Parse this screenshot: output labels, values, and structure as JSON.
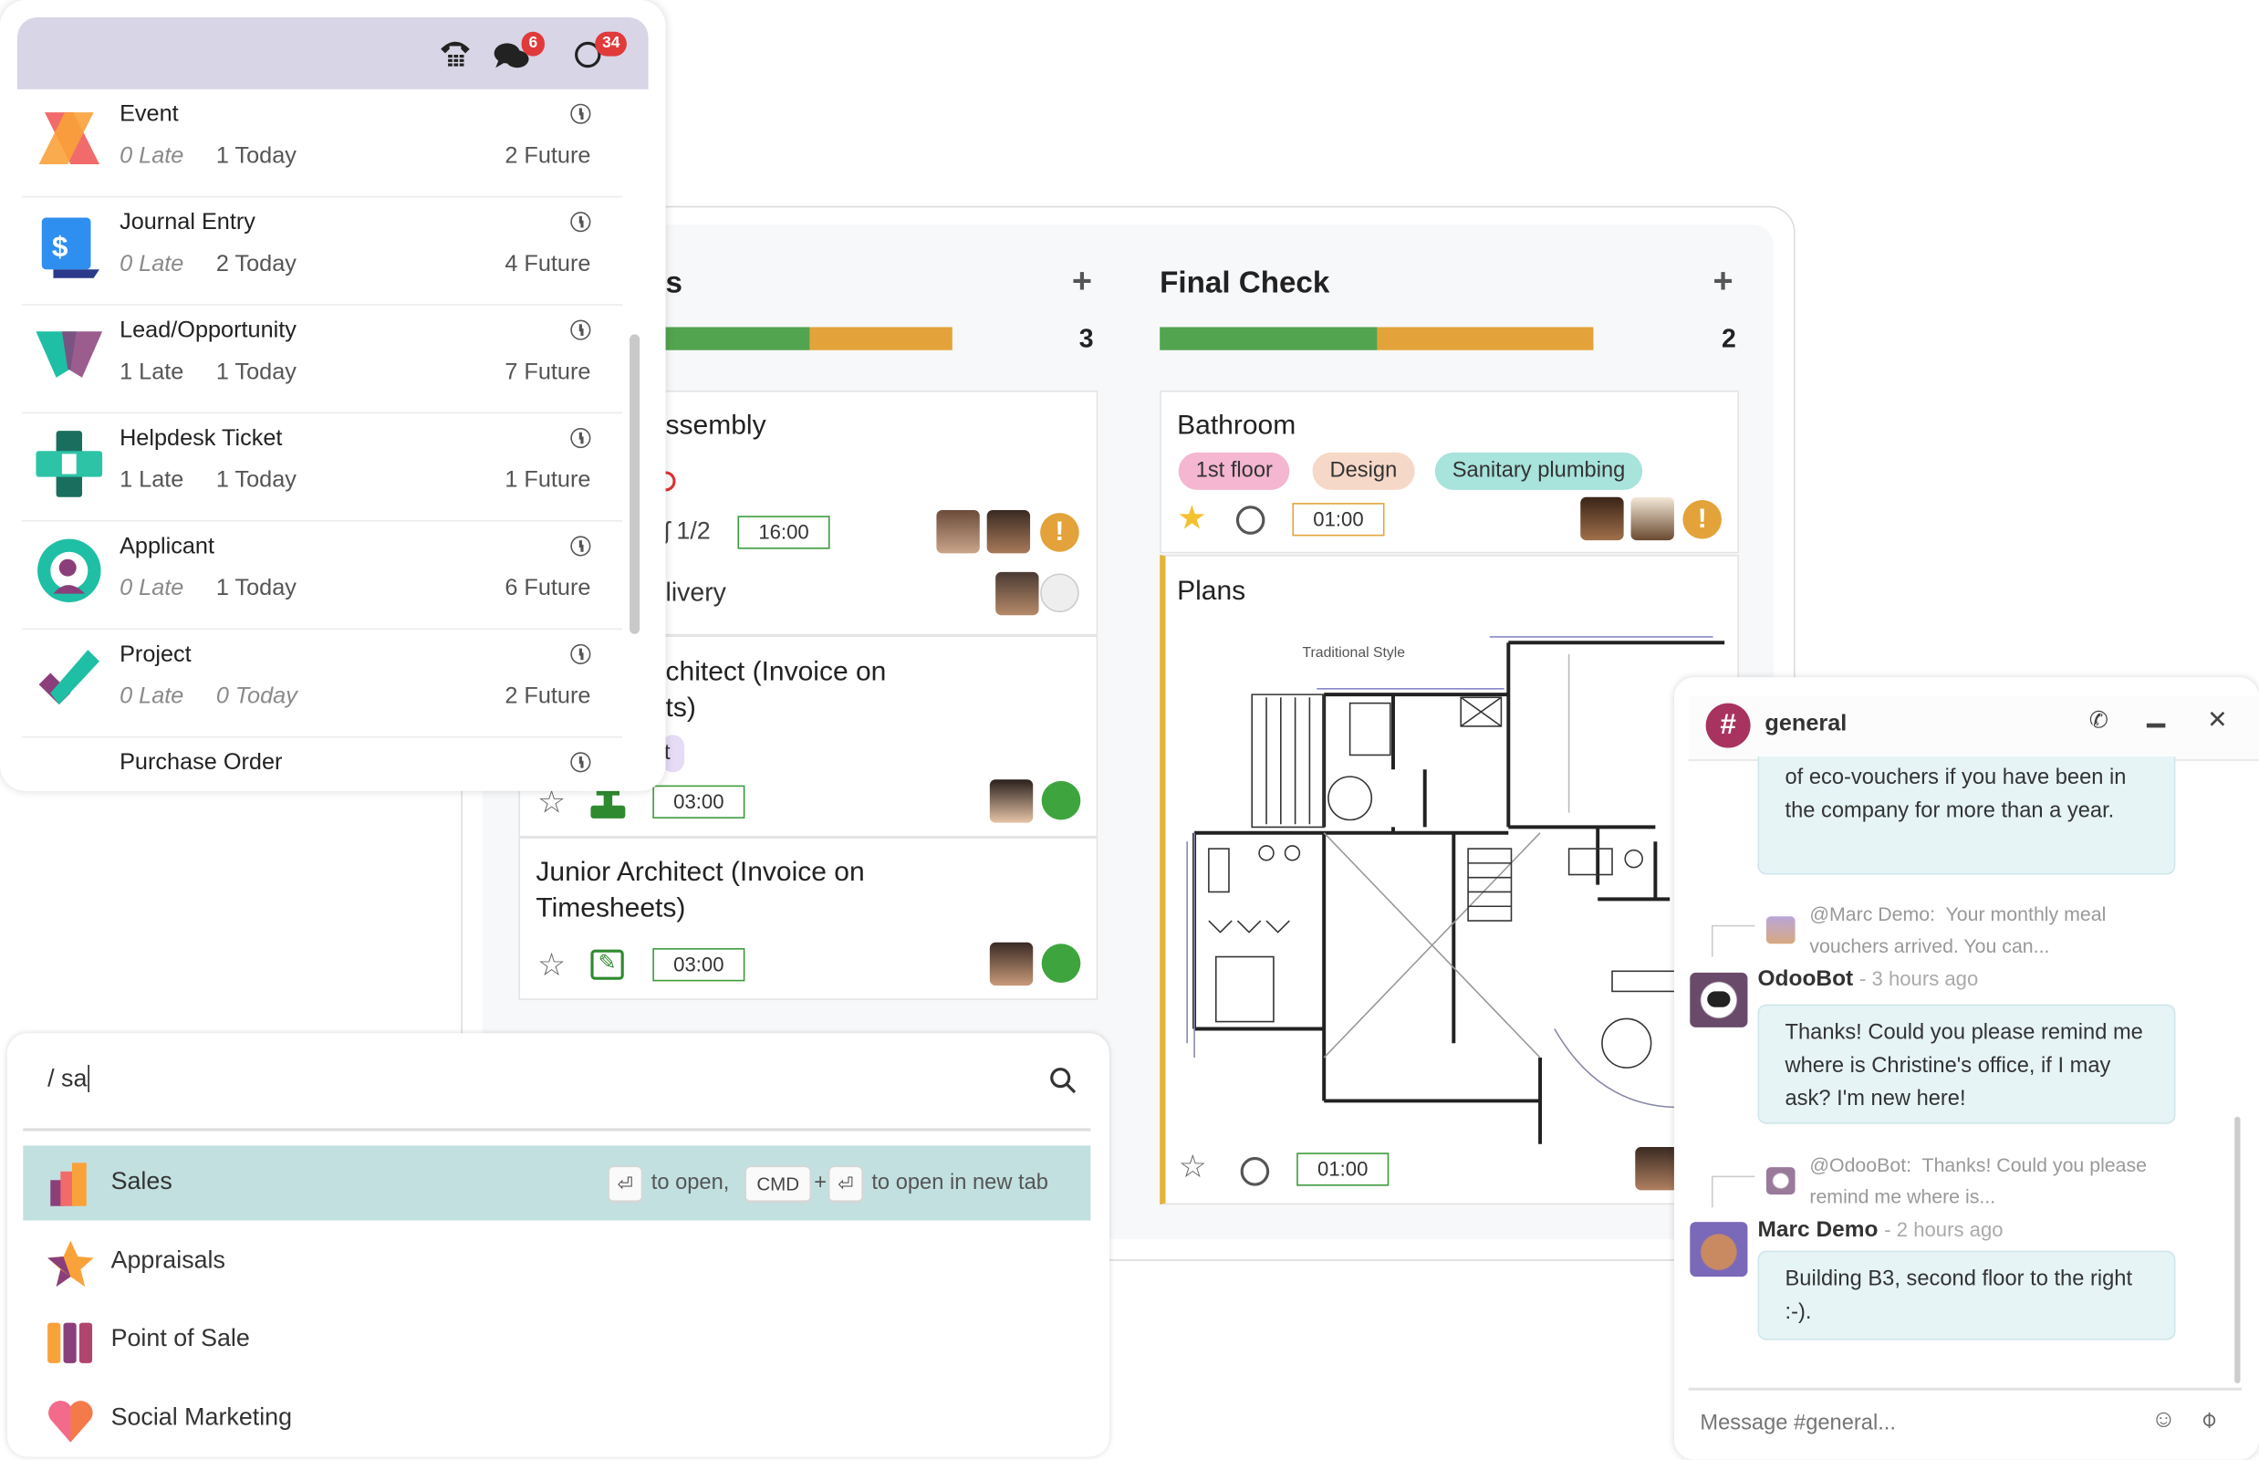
{
  "activity": {
    "header_icons": [
      {
        "icon": "phone-icon"
      },
      {
        "icon": "chat-icon",
        "badge": "6"
      },
      {
        "icon": "clock-icon",
        "badge": "34"
      }
    ],
    "badge_color": "#e03a3a",
    "items": [
      {
        "name": "Event",
        "late": "0 Late",
        "today": "1 Today",
        "future": "2 Future",
        "icon": "event-app-icon"
      },
      {
        "name": "Journal Entry",
        "late": "0 Late",
        "today": "2 Today",
        "future": "4 Future",
        "icon": "accounting-app-icon"
      },
      {
        "name": "Lead/Opportunity",
        "late": "1 Late",
        "today": "1 Today",
        "future": "7 Future",
        "icon": "crm-app-icon"
      },
      {
        "name": "Helpdesk Ticket",
        "late": "1 Late",
        "today": "1 Today",
        "future": "1 Future",
        "icon": "helpdesk-app-icon"
      },
      {
        "name": "Applicant",
        "late": "0 Late",
        "today": "1 Today",
        "future": "6 Future",
        "icon": "recruitment-app-icon"
      },
      {
        "name": "Project",
        "late": "0 Late",
        "today": "0 Today",
        "future": "2 Future",
        "icon": "project-app-icon"
      },
      {
        "name": "Purchase Order",
        "late": "",
        "today": "",
        "future": "",
        "icon": "purchase-app-icon"
      }
    ]
  },
  "kanban": {
    "columns": [
      {
        "title": "s",
        "count": "3",
        "progress": {
          "green": 0.5,
          "orange": 0.5
        },
        "cards": [
          {
            "title": "ssembly",
            "subtasks": "1/2",
            "time": "16:00",
            "line2": "livery"
          },
          {
            "title_lines": [
              "chitect (Invoice on",
              "ts)"
            ],
            "tag": "t",
            "time": "03:00"
          },
          {
            "title_lines": [
              "Junior Architect (Invoice on",
              "Timesheets)"
            ],
            "time": "03:00"
          }
        ]
      },
      {
        "title": "Final Check",
        "count": "2",
        "progress": {
          "green": 0.5,
          "orange": 0.5
        },
        "cards": [
          {
            "title": "Bathroom",
            "tags": [
              "1st floor",
              "Design",
              "Sanitary plumbing"
            ],
            "time": "01:00",
            "starred": true
          },
          {
            "title": "Plans",
            "image_caption": "Traditional Style",
            "time": "01:00"
          }
        ]
      }
    ],
    "colors": {
      "green": "#52a44f",
      "orange": "#e3a33a",
      "tag_pink": "#f4b6d0",
      "tag_peach": "#f6d8c8",
      "tag_teal": "#a8e3dc"
    }
  },
  "search": {
    "query": "/ sa",
    "results": [
      {
        "label": "Sales",
        "icon": "sales-app-icon",
        "selected": true
      },
      {
        "label": "Appraisals",
        "icon": "appraisals-app-icon"
      },
      {
        "label": "Point of Sale",
        "icon": "pos-app-icon"
      },
      {
        "label": "Social Marketing",
        "icon": "social-marketing-app-icon"
      }
    ],
    "hint": {
      "enter_key": "⏎",
      "to_open": "to open,",
      "cmd_key": "CMD",
      "plus": "+",
      "to_open_new_tab": "to open in new tab"
    },
    "highlight_color": "#c2e0e0"
  },
  "chat": {
    "channel": "general",
    "messages": [
      {
        "lines": "of eco-vouchers if you have been in the company for more than a year."
      },
      {
        "reply_to": "@Marc Demo:",
        "reply_text": "Your monthly meal vouchers arrived. You can...",
        "author": "OdooBot",
        "ago": "- 3 hours ago",
        "body": "Thanks! Could you please remind me where is Christine's office, if I may ask? I'm new here!"
      },
      {
        "reply_to": "@OdooBot:",
        "reply_text": "Thanks! Could you please remind me where is...",
        "author": "Marc Demo",
        "ago": "- 2 hours ago",
        "body": "Building B3, second floor to the right :-)."
      }
    ],
    "input_placeholder": "Message #general..."
  }
}
